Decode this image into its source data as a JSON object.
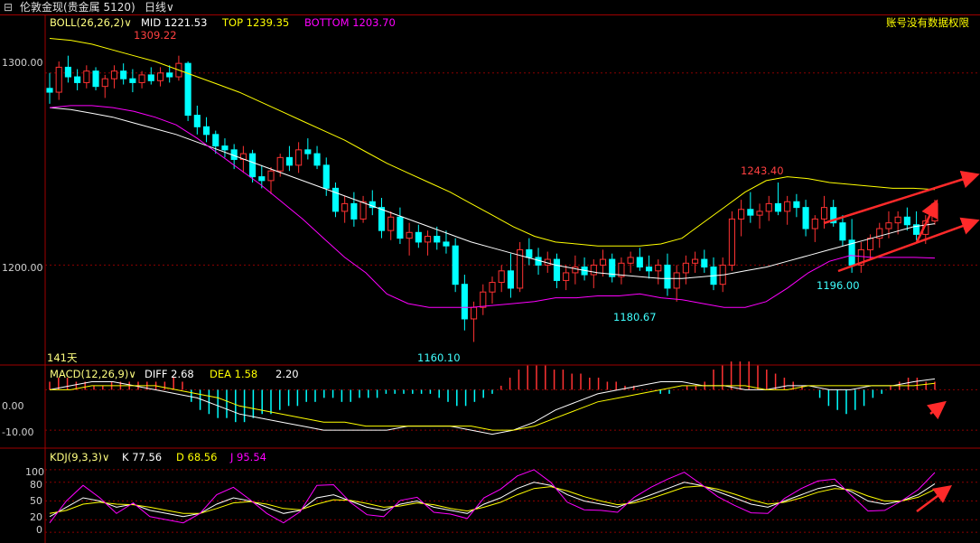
{
  "header": {
    "title": "伦敦金现(贵金属 5120)",
    "timeframe": "日线"
  },
  "notice": "账号没有数据权限",
  "price_panel": {
    "indicator": "BOLL(26,26,2)",
    "mid": "MID 1221.53",
    "top": "TOP 1239.35",
    "bottom": "BOTTOM 1203.70",
    "y_ticks": [
      "1300.00",
      "1200.00"
    ],
    "bars_label": "141天",
    "annotations": [
      "1309.22",
      "1243.40",
      "1196.00",
      "1180.67",
      "1160.10"
    ]
  },
  "macd_panel": {
    "indicator": "MACD(12,26,9)",
    "diff": "DIFF 2.68",
    "dea": "DEA 1.58",
    "macd": "2.20",
    "y_ticks": [
      "0.00",
      "-10.00"
    ]
  },
  "kdj_panel": {
    "indicator": "KDJ(9,3,3)",
    "k": "K 77.56",
    "d": "D 68.56",
    "j": "J 95.54",
    "y_ticks": [
      "100",
      "80",
      "50",
      "20",
      "0"
    ]
  },
  "colors": {
    "up": "#ff3232",
    "down": "#00ffff",
    "mid": "#ffffff",
    "top": "#ffff00",
    "bottom": "#ff00ff",
    "grid": "#8b0000",
    "arrow": "#ff2a2a"
  },
  "chart_data": {
    "type": "candlestick",
    "ohlc": [
      [
        1292,
        1300,
        1284,
        1290
      ],
      [
        1290,
        1306,
        1286,
        1303
      ],
      [
        1303,
        1309,
        1295,
        1298
      ],
      [
        1298,
        1302,
        1291,
        1295
      ],
      [
        1295,
        1304,
        1292,
        1301
      ],
      [
        1301,
        1303,
        1291,
        1293
      ],
      [
        1293,
        1299,
        1287,
        1297
      ],
      [
        1297,
        1304,
        1292,
        1301
      ],
      [
        1301,
        1305,
        1294,
        1297
      ],
      [
        1297,
        1302,
        1290,
        1295
      ],
      [
        1295,
        1301,
        1292,
        1299
      ],
      [
        1299,
        1303,
        1294,
        1296
      ],
      [
        1296,
        1303,
        1293,
        1300
      ],
      [
        1300,
        1304,
        1295,
        1298
      ],
      [
        1298,
        1309,
        1296,
        1305
      ],
      [
        1305,
        1306,
        1275,
        1278
      ],
      [
        1278,
        1283,
        1268,
        1272
      ],
      [
        1272,
        1277,
        1264,
        1268
      ],
      [
        1268,
        1270,
        1258,
        1262
      ],
      [
        1262,
        1266,
        1256,
        1260
      ],
      [
        1260,
        1263,
        1250,
        1255
      ],
      [
        1255,
        1262,
        1248,
        1258
      ],
      [
        1258,
        1260,
        1243,
        1246
      ],
      [
        1246,
        1252,
        1240,
        1244
      ],
      [
        1244,
        1251,
        1237,
        1249
      ],
      [
        1249,
        1258,
        1246,
        1256
      ],
      [
        1256,
        1262,
        1249,
        1252
      ],
      [
        1252,
        1264,
        1248,
        1260
      ],
      [
        1260,
        1266,
        1255,
        1258
      ],
      [
        1258,
        1262,
        1250,
        1252
      ],
      [
        1252,
        1256,
        1236,
        1240
      ],
      [
        1240,
        1243,
        1225,
        1228
      ],
      [
        1228,
        1236,
        1222,
        1232
      ],
      [
        1232,
        1238,
        1220,
        1224
      ],
      [
        1224,
        1236,
        1222,
        1233
      ],
      [
        1233,
        1239,
        1226,
        1230
      ],
      [
        1230,
        1235,
        1214,
        1218
      ],
      [
        1218,
        1228,
        1213,
        1225
      ],
      [
        1225,
        1230,
        1211,
        1214
      ],
      [
        1214,
        1222,
        1205,
        1217
      ],
      [
        1217,
        1221,
        1209,
        1212
      ],
      [
        1212,
        1218,
        1205,
        1215
      ],
      [
        1215,
        1220,
        1208,
        1212
      ],
      [
        1212,
        1218,
        1206,
        1210
      ],
      [
        1210,
        1214,
        1186,
        1190
      ],
      [
        1190,
        1195,
        1166,
        1172
      ],
      [
        1172,
        1181,
        1160,
        1178
      ],
      [
        1178,
        1190,
        1174,
        1186
      ],
      [
        1186,
        1194,
        1180,
        1191
      ],
      [
        1191,
        1200,
        1186,
        1197
      ],
      [
        1197,
        1206,
        1183,
        1188
      ],
      [
        1188,
        1212,
        1186,
        1208
      ],
      [
        1208,
        1214,
        1200,
        1204
      ],
      [
        1204,
        1209,
        1195,
        1200
      ],
      [
        1200,
        1207,
        1196,
        1203
      ],
      [
        1203,
        1206,
        1188,
        1192
      ],
      [
        1192,
        1200,
        1187,
        1196
      ],
      [
        1196,
        1205,
        1190,
        1199
      ],
      [
        1199,
        1204,
        1192,
        1195
      ],
      [
        1195,
        1203,
        1188,
        1200
      ],
      [
        1200,
        1208,
        1194,
        1203
      ],
      [
        1203,
        1206,
        1191,
        1194
      ],
      [
        1194,
        1204,
        1190,
        1201
      ],
      [
        1201,
        1207,
        1196,
        1204
      ],
      [
        1204,
        1209,
        1197,
        1199
      ],
      [
        1199,
        1205,
        1193,
        1197
      ],
      [
        1197,
        1203,
        1190,
        1200
      ],
      [
        1200,
        1206,
        1184,
        1188
      ],
      [
        1188,
        1200,
        1181,
        1196
      ],
      [
        1196,
        1205,
        1190,
        1201
      ],
      [
        1201,
        1207,
        1196,
        1203
      ],
      [
        1203,
        1208,
        1196,
        1199
      ],
      [
        1199,
        1204,
        1187,
        1190
      ],
      [
        1190,
        1204,
        1186,
        1200
      ],
      [
        1200,
        1228,
        1197,
        1224
      ],
      [
        1224,
        1234,
        1215,
        1229
      ],
      [
        1229,
        1238,
        1222,
        1226
      ],
      [
        1226,
        1232,
        1219,
        1228
      ],
      [
        1228,
        1236,
        1223,
        1232
      ],
      [
        1232,
        1243,
        1226,
        1228
      ],
      [
        1228,
        1236,
        1221,
        1233
      ],
      [
        1233,
        1237,
        1225,
        1230
      ],
      [
        1230,
        1234,
        1215,
        1219
      ],
      [
        1219,
        1226,
        1212,
        1224
      ],
      [
        1224,
        1236,
        1219,
        1230
      ],
      [
        1230,
        1234,
        1220,
        1222
      ],
      [
        1222,
        1226,
        1210,
        1213
      ],
      [
        1213,
        1224,
        1196,
        1200
      ],
      [
        1200,
        1212,
        1196,
        1208
      ],
      [
        1208,
        1216,
        1203,
        1214
      ],
      [
        1214,
        1222,
        1209,
        1219
      ],
      [
        1219,
        1228,
        1214,
        1222
      ],
      [
        1222,
        1228,
        1216,
        1225
      ],
      [
        1225,
        1230,
        1218,
        1221
      ],
      [
        1221,
        1228,
        1213,
        1216
      ],
      [
        1216,
        1226,
        1211,
        1223
      ],
      [
        1223,
        1234,
        1221,
        1232
      ]
    ],
    "mid": [
      1282,
      1281,
      1279,
      1277,
      1274,
      1271,
      1268,
      1264,
      1260,
      1256,
      1252,
      1248,
      1244,
      1240,
      1236,
      1232,
      1228,
      1224,
      1220,
      1216,
      1212,
      1209,
      1206,
      1203,
      1200,
      1198,
      1196,
      1195,
      1194,
      1193,
      1193,
      1194,
      1195,
      1197,
      1199,
      1202,
      1205,
      1208,
      1211,
      1214,
      1217,
      1220,
      1221.53
    ],
    "top": [
      1318,
      1317,
      1315,
      1312,
      1309,
      1306,
      1302,
      1298,
      1294,
      1290,
      1285,
      1280,
      1275,
      1270,
      1265,
      1259,
      1253,
      1248,
      1243,
      1238,
      1232,
      1226,
      1220,
      1215,
      1212,
      1211,
      1210,
      1210,
      1210,
      1211,
      1214,
      1222,
      1230,
      1238,
      1244,
      1246,
      1245,
      1243,
      1242,
      1241,
      1240,
      1240,
      1239.35
    ],
    "bottom": [
      1282,
      1283,
      1283,
      1282,
      1280,
      1277,
      1273,
      1266,
      1258,
      1250,
      1242,
      1233,
      1224,
      1214,
      1204,
      1196,
      1185,
      1180,
      1178,
      1178,
      1178,
      1179,
      1180,
      1181,
      1183,
      1183,
      1184,
      1184,
      1185,
      1183,
      1182,
      1180,
      1178,
      1178,
      1181,
      1188,
      1196,
      1202,
      1205,
      1204,
      1204,
      1204,
      1203.7
    ],
    "macd": {
      "hist": [
        2,
        3,
        3,
        2,
        2,
        1,
        1,
        2,
        2,
        2,
        2,
        2,
        2,
        2,
        3,
        2,
        -3,
        -5,
        -6,
        -7,
        -7,
        -8,
        -8,
        -7,
        -6,
        -6,
        -5,
        -4,
        -4,
        -3,
        -3,
        -2,
        -2,
        -3,
        -3,
        -2,
        -2,
        -2,
        -1,
        -1,
        -1,
        -1,
        -1,
        -1,
        -2,
        -3,
        -4,
        -4,
        -3,
        -2,
        -1,
        1,
        3,
        5,
        6,
        6,
        6,
        5,
        5,
        4,
        4,
        3,
        3,
        2,
        2,
        1,
        1,
        0,
        0,
        -1,
        -1,
        0,
        1,
        1,
        2,
        5,
        6,
        7,
        7,
        7,
        6,
        5,
        4,
        3,
        2,
        1,
        0,
        -2,
        -4,
        -5,
        -6,
        -5,
        -4,
        -2,
        -1,
        1,
        2,
        3,
        3,
        2,
        2
      ],
      "diff": [
        0,
        1,
        2,
        2,
        1,
        0,
        -1,
        -2,
        -4,
        -6,
        -7,
        -8,
        -9,
        -10,
        -10,
        -10,
        -10,
        -9,
        -9,
        -9,
        -10,
        -11,
        -10,
        -8,
        -5,
        -3,
        -1,
        0,
        1,
        2,
        2,
        1,
        1,
        0,
        0,
        1,
        1,
        0,
        0,
        1,
        1,
        2,
        2.68
      ],
      "dea": [
        0,
        0,
        1,
        1,
        1,
        1,
        0,
        -1,
        -2,
        -4,
        -5,
        -6,
        -7,
        -8,
        -8,
        -9,
        -9,
        -9,
        -9,
        -9,
        -9,
        -10,
        -10,
        -9,
        -7,
        -5,
        -3,
        -2,
        -1,
        0,
        1,
        1,
        1,
        1,
        0,
        0,
        1,
        1,
        1,
        1,
        1,
        1,
        1.58
      ]
    },
    "kdj": {
      "k": [
        25,
        40,
        55,
        50,
        40,
        45,
        35,
        30,
        25,
        30,
        45,
        55,
        50,
        40,
        30,
        35,
        55,
        60,
        50,
        40,
        35,
        45,
        50,
        40,
        35,
        30,
        45,
        55,
        70,
        80,
        75,
        60,
        50,
        45,
        40,
        50,
        60,
        70,
        80,
        75,
        65,
        55,
        45,
        40,
        50,
        60,
        70,
        75,
        65,
        50,
        45,
        50,
        60,
        77.56
      ],
      "d": [
        30,
        35,
        45,
        48,
        45,
        44,
        40,
        35,
        30,
        30,
        38,
        47,
        49,
        45,
        38,
        36,
        45,
        52,
        51,
        46,
        40,
        42,
        47,
        44,
        38,
        34,
        40,
        48,
        60,
        70,
        73,
        66,
        57,
        50,
        44,
        47,
        54,
        63,
        72,
        74,
        69,
        61,
        52,
        45,
        48,
        55,
        64,
        70,
        68,
        58,
        50,
        50,
        56,
        68.56
      ],
      "j": [
        15,
        50,
        75,
        55,
        30,
        47,
        25,
        20,
        15,
        30,
        60,
        72,
        52,
        30,
        15,
        33,
        75,
        76,
        48,
        28,
        25,
        51,
        56,
        32,
        29,
        22,
        55,
        69,
        90,
        100,
        80,
        48,
        36,
        35,
        32,
        56,
        72,
        85,
        96,
        77,
        57,
        43,
        31,
        30,
        54,
        70,
        82,
        85,
        59,
        34,
        35,
        50,
        68,
        95.54
      ]
    },
    "y_range_price": [
      1148,
      1330
    ],
    "y_range_macd": [
      -14,
      3
    ],
    "y_range_kdj": [
      -10,
      110
    ]
  }
}
